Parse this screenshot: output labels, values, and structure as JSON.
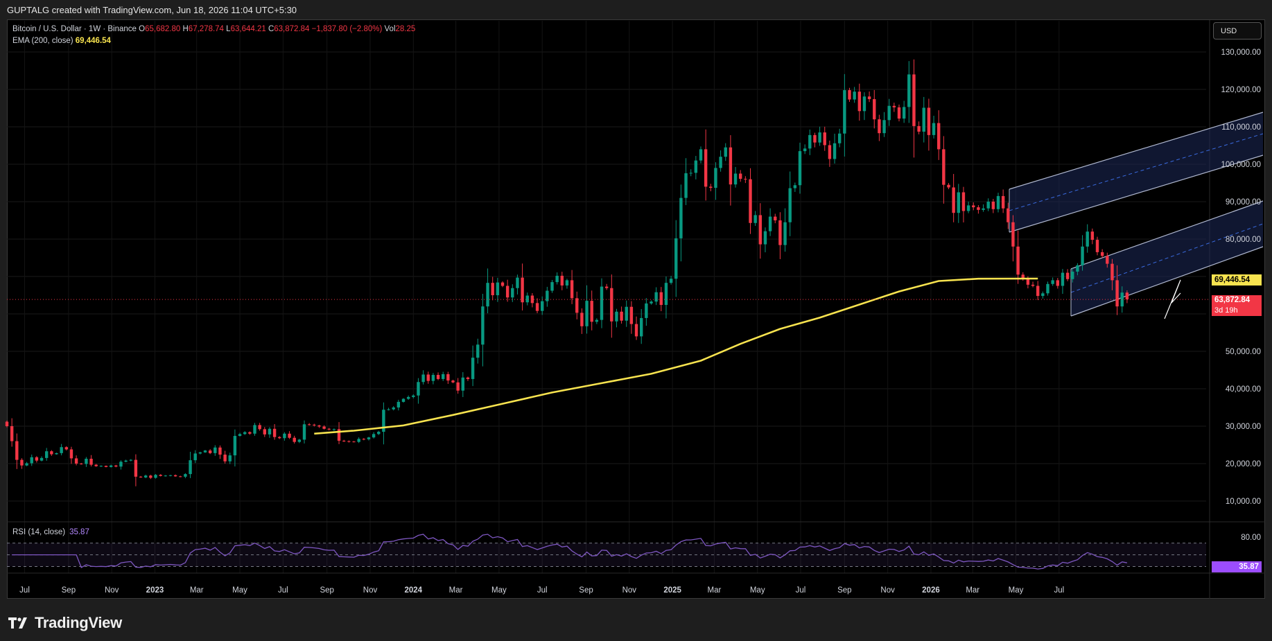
{
  "header": {
    "title": "GUPTALG created with TradingView.com, Jun 18, 2026 11:04 UTC+5:30"
  },
  "legend": {
    "symbol": "Bitcoin / U.S. Dollar · 1W · Binance",
    "open_label": "O",
    "open": "65,682.80",
    "high_label": "H",
    "high": "67,278.74",
    "low_label": "L",
    "low": "63,644.21",
    "close_label": "C",
    "close": "63,872.84",
    "change": "−1,837.80 (−2.80%)",
    "vol_label": "Vol",
    "vol": "28.25",
    "ema_label": "EMA (200, close)",
    "ema_value": "69,446.54"
  },
  "rsi_legend": {
    "label": "RSI (14, close)",
    "value": "35.87"
  },
  "currency_button": "USD",
  "price_tags": {
    "ema": "69,446.54",
    "last": "63,872.84",
    "countdown": "3d 19h",
    "rsi": "35.87"
  },
  "brand": "TradingView",
  "colors": {
    "up": "#089981",
    "down": "#f23645",
    "ema": "#f7e34f",
    "rsi": "#7e57c2",
    "channel": "#1e2a5a",
    "background": "#000000"
  },
  "chart_data": [
    {
      "type": "candlestick",
      "title": "Bitcoin / U.S. Dollar · 1W · Binance",
      "y_axis_ticks": [
        10000,
        20000,
        30000,
        40000,
        50000,
        60000,
        70000,
        80000,
        90000,
        100000,
        110000,
        120000,
        130000
      ],
      "y_tick_labels": [
        "10,000.00",
        "20,000.00",
        "30,000.00",
        "40,000.00",
        "50,000.00",
        "",
        "",
        "80,000.00",
        "90,000.00",
        "100,000.00",
        "110,000.00",
        "120,000.00",
        "130,000.00"
      ],
      "ylim": [
        0,
        137000
      ],
      "x_tick_labels": [
        "Jul",
        "Sep",
        "Nov",
        "2023",
        "Mar",
        "May",
        "Jul",
        "Sep",
        "Nov",
        "2024",
        "Mar",
        "May",
        "Jul",
        "Sep",
        "Nov",
        "2025",
        "Mar",
        "May",
        "Jul",
        "Sep",
        "Nov",
        "2026",
        "Mar",
        "May",
        "Jul"
      ],
      "x_tick_dates": [
        "2022-07-01",
        "2022-09-01",
        "2022-11-01",
        "2023-01-01",
        "2023-03-01",
        "2023-05-01",
        "2023-07-01",
        "2023-09-01",
        "2023-11-01",
        "2024-01-01",
        "2024-03-01",
        "2024-05-01",
        "2024-07-01",
        "2024-09-01",
        "2024-11-01",
        "2025-01-01",
        "2025-03-01",
        "2025-05-01",
        "2025-07-01",
        "2025-09-01",
        "2025-11-01",
        "2026-01-01",
        "2026-03-01",
        "2026-05-01",
        "2026-07-01"
      ],
      "start_date": "2022-06-06",
      "close_series": [
        30000,
        26000,
        21000,
        19500,
        20100,
        21700,
        20800,
        21500,
        23300,
        22500,
        22800,
        24400,
        23800,
        21400,
        20000,
        19900,
        21300,
        19700,
        19300,
        19400,
        19100,
        19500,
        19200,
        20500,
        20800,
        21000,
        16500,
        16300,
        16800,
        16200,
        17000,
        16700,
        16800,
        16900,
        16600,
        16500,
        17200,
        20900,
        22700,
        23000,
        23500,
        22800,
        24300,
        22400,
        20600,
        22200,
        27400,
        27900,
        28400,
        28000,
        30300,
        29200,
        27800,
        29300,
        27100,
        26800,
        28000,
        26900,
        25800,
        26400,
        30500,
        30400,
        30200,
        29900,
        29300,
        29100,
        29200,
        26100,
        26000,
        25900,
        25800,
        26600,
        26500,
        27000,
        27900,
        28500,
        34400,
        34500,
        35000,
        36500,
        37300,
        37800,
        38200,
        41800,
        43800,
        42100,
        43700,
        42600,
        43900,
        42200,
        41700,
        39500,
        43000,
        42600,
        48300,
        51800,
        62000,
        68300,
        65000,
        68400,
        67500,
        64400,
        66900,
        69700,
        63100,
        64900,
        62900,
        60800,
        63400,
        66200,
        68500,
        70200,
        67600,
        69000,
        64200,
        60300,
        56700,
        63500,
        57900,
        58400,
        67300,
        66900,
        58000,
        60600,
        58200,
        61900,
        57300,
        54000,
        58900,
        62800,
        63300,
        65800,
        62400,
        68300,
        69400,
        80200,
        91000,
        97600,
        97700,
        101000,
        104000,
        94000,
        93700,
        99000,
        102000,
        104500,
        94600,
        97500,
        96100,
        96000,
        84300,
        86400,
        78600,
        82100,
        86000,
        85000,
        78400,
        84500,
        93600,
        94400,
        103500,
        104200,
        107800,
        105800,
        108500,
        105100,
        101400,
        105600,
        108200,
        119800,
        117300,
        119400,
        114200,
        118100,
        117400,
        112000,
        108300,
        111800,
        115600,
        115200,
        112200,
        115300,
        124000,
        110200,
        108700,
        115100,
        107800,
        111000,
        104000,
        94500,
        93800,
        87000,
        92500,
        87500,
        89000,
        88500,
        87800,
        88200,
        90000,
        88000,
        91500,
        88200,
        84500,
        78000,
        70500,
        69500,
        67800,
        67500,
        64800,
        65500,
        68000,
        69000,
        67500,
        71000,
        69300,
        71300,
        73000,
        78000,
        82000,
        79800,
        76500,
        75500,
        73400,
        69000,
        62000,
        65700,
        63900
      ],
      "ema_200_approx": [
        [
          62,
          28000
        ],
        [
          70,
          28800
        ],
        [
          80,
          30200
        ],
        [
          90,
          33000
        ],
        [
          100,
          36000
        ],
        [
          110,
          39000
        ],
        [
          120,
          41500
        ],
        [
          130,
          44000
        ],
        [
          140,
          47500
        ],
        [
          148,
          52000
        ],
        [
          156,
          56000
        ],
        [
          164,
          59000
        ],
        [
          172,
          62500
        ],
        [
          180,
          66000
        ],
        [
          188,
          68800
        ],
        [
          196,
          69400
        ],
        [
          208,
          69446
        ]
      ],
      "ema_last": 69446.54,
      "last_price": 63872.84
    },
    {
      "type": "line",
      "title": "RSI (14, close)",
      "ylim": [
        0,
        100
      ],
      "levels": [
        70,
        50,
        30
      ],
      "y_tick_labels": [
        "80.00"
      ],
      "y_ticks": [
        80
      ],
      "last": 35.87
    }
  ]
}
